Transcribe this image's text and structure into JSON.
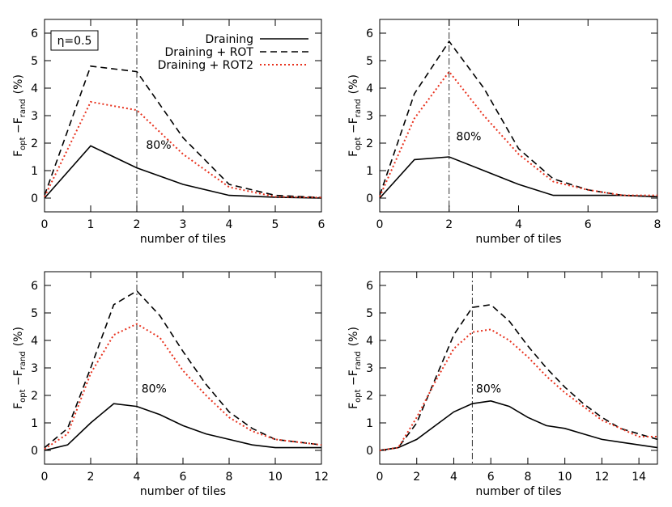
{
  "chart_data": [
    {
      "type": "line",
      "xlabel": "number of tiles",
      "ylabel": {
        "f1": "F",
        "s1": "opt",
        "f2": " −F",
        "s2": "rand",
        "unit": "(%)"
      },
      "x": [
        0,
        1,
        2,
        3,
        4,
        5,
        6
      ],
      "series": [
        {
          "name": "Draining",
          "color": "#000000",
          "style": "solid",
          "values": [
            0,
            1.9,
            1.1,
            0.5,
            0.1,
            0.03,
            0
          ]
        },
        {
          "name": "Draining + ROT",
          "color": "#000000",
          "style": "dashed",
          "values": [
            0.1,
            4.8,
            4.6,
            2.2,
            0.5,
            0.1,
            0.02
          ]
        },
        {
          "name": "Draining + ROT2",
          "color": "#e8321e",
          "style": "dotted",
          "values": [
            0.05,
            3.5,
            3.2,
            1.6,
            0.4,
            0.05,
            0.02
          ]
        }
      ],
      "xlim": [
        0,
        6
      ],
      "xticks": [
        0,
        1,
        2,
        3,
        4,
        5,
        6
      ],
      "ylim": [
        -0.5,
        6.5
      ],
      "yticks": [
        0,
        1,
        2,
        3,
        4,
        5,
        6
      ],
      "vline": 2,
      "annotation": {
        "text": "80%",
        "x": 2.2,
        "y": 1.8
      },
      "legend": true,
      "label_box": "η=0.5"
    },
    {
      "type": "line",
      "xlabel": "number of tiles",
      "ylabel": {
        "f1": "F",
        "s1": "opt",
        "f2": " −F",
        "s2": "rand",
        "unit": "(%)"
      },
      "x": [
        0,
        1,
        2,
        3,
        4,
        5,
        6,
        7,
        8
      ],
      "series": [
        {
          "name": "Draining",
          "color": "#000000",
          "style": "solid",
          "values": [
            0,
            1.4,
            1.5,
            1.0,
            0.5,
            0.1,
            0.1,
            0.1,
            0.05
          ]
        },
        {
          "name": "Draining + ROT",
          "color": "#000000",
          "style": "dashed",
          "values": [
            0.1,
            3.8,
            5.7,
            4.0,
            1.8,
            0.7,
            0.3,
            0.1,
            0.05
          ]
        },
        {
          "name": "Draining + ROT2",
          "color": "#e8321e",
          "style": "dotted",
          "values": [
            0.05,
            2.9,
            4.6,
            3.0,
            1.6,
            0.6,
            0.3,
            0.1,
            0.1
          ]
        }
      ],
      "xlim": [
        0,
        8
      ],
      "xticks": [
        0,
        2,
        4,
        6,
        8
      ],
      "ylim": [
        -0.5,
        6.5
      ],
      "yticks": [
        0,
        1,
        2,
        3,
        4,
        5,
        6
      ],
      "vline": 2,
      "annotation": {
        "text": "80%",
        "x": 2.2,
        "y": 2.1
      },
      "legend": false
    },
    {
      "type": "line",
      "xlabel": "number of tiles",
      "ylabel": {
        "f1": "F",
        "s1": "opt",
        "f2": " −F",
        "s2": "rand",
        "unit": "(%)"
      },
      "x": [
        0,
        1,
        2,
        3,
        4,
        5,
        6,
        7,
        8,
        9,
        10,
        11,
        12
      ],
      "series": [
        {
          "name": "Draining",
          "color": "#000000",
          "style": "solid",
          "values": [
            0,
            0.2,
            1.0,
            1.7,
            1.6,
            1.3,
            0.9,
            0.6,
            0.4,
            0.2,
            0.1,
            0.1,
            0.1
          ]
        },
        {
          "name": "Draining + ROT",
          "color": "#000000",
          "style": "dashed",
          "values": [
            0.1,
            0.8,
            3.0,
            5.3,
            5.8,
            4.9,
            3.6,
            2.4,
            1.4,
            0.8,
            0.4,
            0.3,
            0.2
          ]
        },
        {
          "name": "Draining + ROT2",
          "color": "#e8321e",
          "style": "dotted",
          "values": [
            0.05,
            0.6,
            2.8,
            4.2,
            4.6,
            4.1,
            2.9,
            2.0,
            1.2,
            0.7,
            0.4,
            0.3,
            0.2
          ]
        }
      ],
      "xlim": [
        0,
        12
      ],
      "xticks": [
        0,
        2,
        4,
        6,
        8,
        10,
        12
      ],
      "ylim": [
        -0.5,
        6.5
      ],
      "yticks": [
        0,
        1,
        2,
        3,
        4,
        5,
        6
      ],
      "vline": 4,
      "annotation": {
        "text": "80%",
        "x": 4.2,
        "y": 2.1
      },
      "legend": false
    },
    {
      "type": "line",
      "xlabel": "number of tiles",
      "ylabel": {
        "f1": "F",
        "s1": "opt",
        "f2": " −F",
        "s2": "rand",
        "unit": "(%)"
      },
      "x": [
        0,
        1,
        2,
        3,
        4,
        5,
        6,
        7,
        8,
        9,
        10,
        11,
        12,
        13,
        14,
        15
      ],
      "series": [
        {
          "name": "Draining",
          "color": "#000000",
          "style": "solid",
          "values": [
            0,
            0.1,
            0.4,
            0.9,
            1.4,
            1.7,
            1.8,
            1.6,
            1.2,
            0.9,
            0.8,
            0.6,
            0.4,
            0.3,
            0.2,
            0.1
          ]
        },
        {
          "name": "Draining + ROT",
          "color": "#000000",
          "style": "dashed",
          "values": [
            0,
            0.1,
            1.0,
            2.6,
            4.2,
            5.2,
            5.3,
            4.7,
            3.8,
            3.0,
            2.3,
            1.7,
            1.2,
            0.8,
            0.6,
            0.4
          ]
        },
        {
          "name": "Draining + ROT2",
          "color": "#e8321e",
          "style": "dotted",
          "values": [
            0,
            0.1,
            1.2,
            2.5,
            3.7,
            4.3,
            4.4,
            4.0,
            3.4,
            2.7,
            2.1,
            1.6,
            1.1,
            0.8,
            0.5,
            0.5
          ]
        }
      ],
      "xlim": [
        0,
        15
      ],
      "xticks": [
        0,
        2,
        4,
        6,
        8,
        10,
        12,
        14
      ],
      "ylim": [
        -0.5,
        6.5
      ],
      "yticks": [
        0,
        1,
        2,
        3,
        4,
        5,
        6
      ],
      "vline": 5,
      "annotation": {
        "text": "80%",
        "x": 5.2,
        "y": 2.1
      },
      "legend": false
    }
  ]
}
